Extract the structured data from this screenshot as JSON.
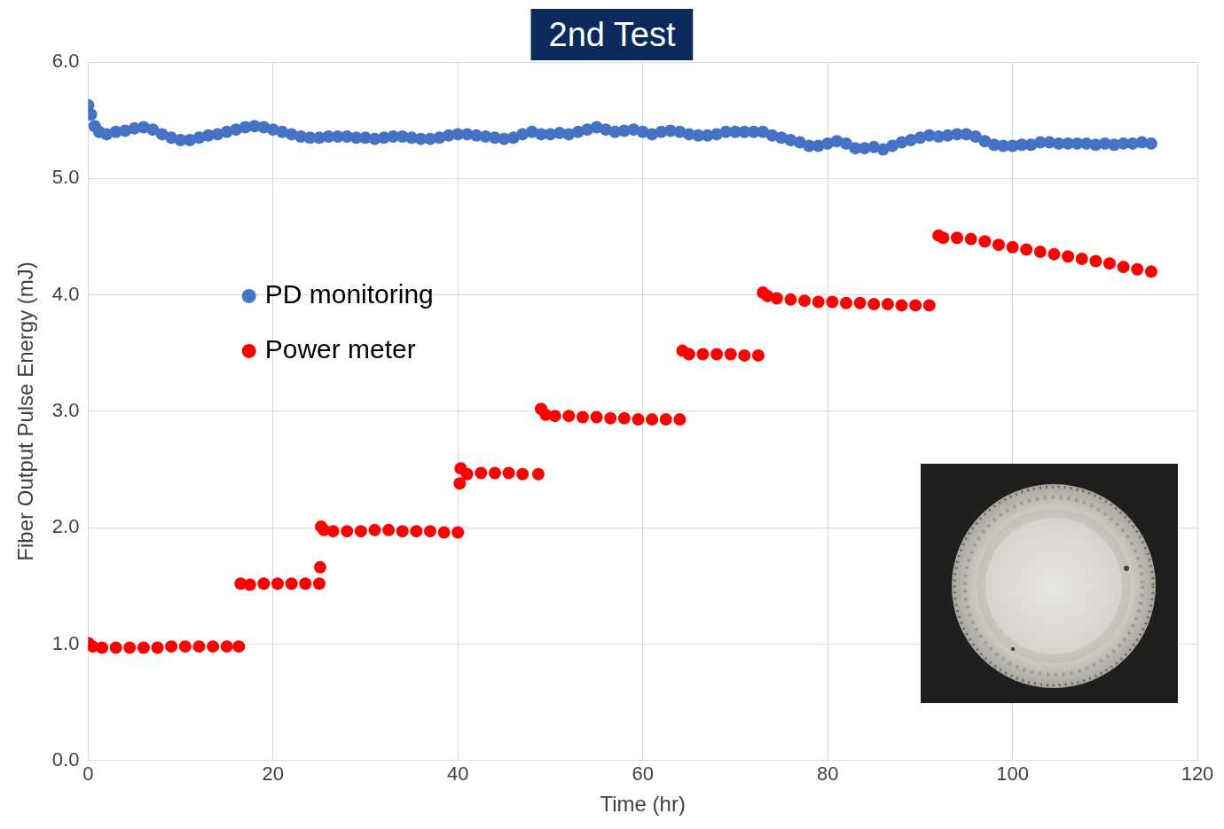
{
  "chart_data": {
    "type": "scatter",
    "title": "2nd Test",
    "x_label": "Time (hr)",
    "y_label": "Fiber Output Pulse Energy (mJ)",
    "xlim": [
      0,
      120
    ],
    "xticks": [
      0,
      20,
      40,
      60,
      80,
      100,
      120
    ],
    "ylim": [
      0,
      6
    ],
    "yticks": [
      {
        "value": 0,
        "label": "0.0"
      },
      {
        "value": 1,
        "label": "1.0"
      },
      {
        "value": 2,
        "label": "2.0"
      },
      {
        "value": 3,
        "label": "3.0"
      },
      {
        "value": 4,
        "label": "4.0"
      },
      {
        "value": 5,
        "label": "5.0"
      },
      {
        "value": 6,
        "label": "6.0"
      }
    ],
    "grid": true,
    "legend": "upper left",
    "series": [
      {
        "name": "PD monitoring",
        "color": "#4472c4",
        "marker": "circle",
        "x": [
          0,
          0.3,
          0.7,
          1.2,
          2,
          3,
          4,
          5,
          6,
          7,
          8,
          9,
          10,
          11,
          12,
          13,
          14,
          15,
          16,
          17,
          18,
          19,
          20,
          21,
          22,
          23,
          24,
          25,
          26,
          27,
          28,
          29,
          30,
          31,
          32,
          33,
          34,
          35,
          36,
          37,
          38,
          39,
          40,
          41,
          42,
          43,
          44,
          45,
          46,
          47,
          48,
          49,
          50,
          51,
          52,
          53,
          54,
          55,
          56,
          57,
          58,
          59,
          60,
          61,
          62,
          63,
          64,
          65,
          66,
          67,
          68,
          69,
          70,
          71,
          72,
          73,
          74,
          75,
          76,
          77,
          78,
          79,
          80,
          81,
          82,
          83,
          84,
          85,
          86,
          87,
          88,
          89,
          90,
          91,
          92,
          93,
          94,
          95,
          96,
          97,
          98,
          99,
          100,
          101,
          102,
          103,
          104,
          105,
          106,
          107,
          108,
          109,
          110,
          111,
          112,
          113,
          114,
          115
        ],
        "values": [
          5.63,
          5.55,
          5.45,
          5.4,
          5.38,
          5.4,
          5.41,
          5.43,
          5.44,
          5.42,
          5.38,
          5.35,
          5.33,
          5.33,
          5.35,
          5.37,
          5.38,
          5.4,
          5.42,
          5.44,
          5.45,
          5.44,
          5.42,
          5.4,
          5.38,
          5.36,
          5.35,
          5.35,
          5.36,
          5.36,
          5.36,
          5.35,
          5.35,
          5.34,
          5.35,
          5.36,
          5.36,
          5.35,
          5.34,
          5.34,
          5.35,
          5.37,
          5.38,
          5.38,
          5.37,
          5.36,
          5.35,
          5.34,
          5.35,
          5.38,
          5.4,
          5.38,
          5.38,
          5.39,
          5.38,
          5.4,
          5.42,
          5.44,
          5.42,
          5.4,
          5.41,
          5.42,
          5.4,
          5.38,
          5.4,
          5.41,
          5.4,
          5.38,
          5.37,
          5.37,
          5.38,
          5.4,
          5.4,
          5.4,
          5.4,
          5.4,
          5.37,
          5.35,
          5.33,
          5.31,
          5.28,
          5.28,
          5.3,
          5.32,
          5.3,
          5.26,
          5.26,
          5.27,
          5.25,
          5.28,
          5.31,
          5.33,
          5.35,
          5.37,
          5.36,
          5.37,
          5.38,
          5.38,
          5.36,
          5.32,
          5.29,
          5.28,
          5.28,
          5.29,
          5.29,
          5.31,
          5.31,
          5.3,
          5.3,
          5.3,
          5.3,
          5.29,
          5.3,
          5.29,
          5.3,
          5.3,
          5.31,
          5.3
        ]
      },
      {
        "name": "Power meter",
        "color": "#ff0000",
        "marker": "circle",
        "x": [
          0,
          0.5,
          1.5,
          3,
          4.5,
          6,
          7.5,
          9,
          10.5,
          12,
          13.5,
          15,
          16.3,
          16.5,
          17.5,
          19,
          20.5,
          22,
          23.5,
          25,
          25.1,
          25.2,
          25.5,
          26.5,
          28,
          29.5,
          31,
          32.5,
          34,
          35.5,
          37,
          38.5,
          40,
          40.2,
          40.3,
          41,
          42.5,
          44,
          45.5,
          47,
          48.7,
          49,
          49.5,
          50.5,
          52,
          53.5,
          55,
          56.5,
          58,
          59.5,
          61,
          62.5,
          64,
          64.3,
          65,
          66.5,
          68,
          69.5,
          71,
          72.5,
          73,
          73.5,
          74.5,
          76,
          77.5,
          79,
          80.5,
          82,
          83.5,
          85,
          86.5,
          88,
          89.5,
          91,
          92,
          92.5,
          94,
          95.5,
          97,
          98.5,
          100,
          101.5,
          103,
          104.5,
          106,
          107.5,
          109,
          110.5,
          112,
          113.5,
          115
        ],
        "values": [
          1.01,
          0.98,
          0.97,
          0.97,
          0.97,
          0.97,
          0.97,
          0.98,
          0.98,
          0.98,
          0.98,
          0.98,
          0.98,
          1.52,
          1.51,
          1.52,
          1.52,
          1.52,
          1.52,
          1.52,
          1.66,
          2.01,
          1.98,
          1.97,
          1.97,
          1.97,
          1.98,
          1.98,
          1.97,
          1.97,
          1.97,
          1.96,
          1.96,
          2.38,
          2.51,
          2.46,
          2.47,
          2.47,
          2.47,
          2.46,
          2.46,
          3.02,
          2.97,
          2.96,
          2.96,
          2.95,
          2.95,
          2.94,
          2.94,
          2.93,
          2.93,
          2.93,
          2.93,
          3.52,
          3.49,
          3.49,
          3.49,
          3.49,
          3.48,
          3.48,
          4.02,
          3.99,
          3.97,
          3.96,
          3.95,
          3.94,
          3.94,
          3.93,
          3.93,
          3.92,
          3.92,
          3.91,
          3.91,
          3.91,
          4.51,
          4.49,
          4.49,
          4.48,
          4.46,
          4.43,
          4.41,
          4.39,
          4.37,
          4.35,
          4.33,
          4.31,
          4.29,
          4.27,
          4.24,
          4.22,
          4.2
        ]
      }
    ]
  }
}
